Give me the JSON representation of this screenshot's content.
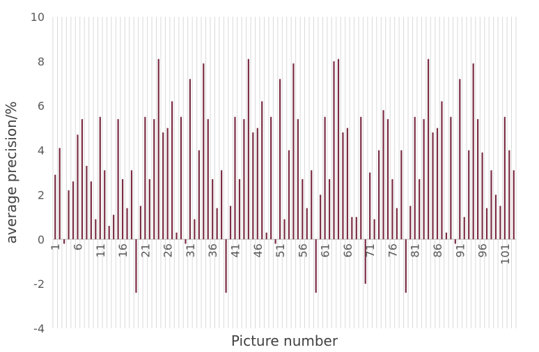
{
  "chart_data": {
    "type": "bar",
    "title": "",
    "xlabel": "Picture number",
    "ylabel": "average precision/%",
    "ylim": [
      -4,
      10
    ],
    "yticks": [
      -4,
      -2,
      0,
      2,
      4,
      6,
      8,
      10
    ],
    "ytick_labels": [
      "-4",
      "-2",
      "0",
      "2",
      "4",
      "6",
      "8",
      "10"
    ],
    "grid": "vertical",
    "categories": [
      "1",
      "2",
      "3",
      "4",
      "5",
      "6",
      "7",
      "8",
      "9",
      "10",
      "11",
      "12",
      "13",
      "14",
      "15",
      "16",
      "17",
      "18",
      "19",
      "20",
      "21",
      "22",
      "23",
      "24",
      "25",
      "26",
      "27",
      "28",
      "29",
      "30",
      "31",
      "32",
      "33",
      "34",
      "35",
      "36",
      "37",
      "38",
      "39",
      "40",
      "41",
      "42",
      "43",
      "44",
      "45",
      "46",
      "47",
      "48",
      "49",
      "50",
      "51",
      "52",
      "53",
      "54",
      "55",
      "56",
      "57",
      "58",
      "59",
      "60",
      "61",
      "62",
      "63",
      "64",
      "65",
      "66",
      "67",
      "68",
      "69",
      "70",
      "71",
      "72",
      "73",
      "74",
      "75",
      "76",
      "77",
      "78",
      "79",
      "80",
      "81",
      "82",
      "83",
      "84",
      "85",
      "86",
      "87",
      "88",
      "89",
      "90",
      "91",
      "92",
      "93",
      "94",
      "95",
      "96",
      "97",
      "98",
      "99",
      "100",
      "101",
      "102",
      "103"
    ],
    "xtick_labels": [
      "1",
      "6",
      "11",
      "16",
      "21",
      "26",
      "31",
      "36",
      "41",
      "46",
      "51",
      "56",
      "61",
      "66",
      "71",
      "76",
      "81",
      "86",
      "91",
      "96",
      "101"
    ],
    "series": [
      {
        "name": "average precision",
        "color": "#7B2C43",
        "values": [
          2.9,
          4.1,
          -0.2,
          2.2,
          2.6,
          4.7,
          5.4,
          3.3,
          2.6,
          0.9,
          5.5,
          3.1,
          0.6,
          1.1,
          5.4,
          2.7,
          1.4,
          3.1,
          -2.4,
          1.5,
          5.5,
          2.7,
          5.4,
          8.1,
          4.8,
          5.0,
          6.2,
          0.3,
          5.5,
          -0.2,
          7.2,
          0.9,
          4.0,
          7.9,
          5.4,
          2.7,
          1.4,
          3.1,
          -2.4,
          1.5,
          5.5,
          2.7,
          5.4,
          8.1,
          4.8,
          5.0,
          6.2,
          0.3,
          5.5,
          -0.2,
          7.2,
          0.9,
          4.0,
          7.9,
          5.4,
          2.7,
          1.4,
          3.1,
          -2.4,
          2.0,
          5.5,
          2.7,
          8.0,
          8.1,
          4.8,
          5.0,
          1.0,
          1.0,
          5.5,
          -2.0,
          3.0,
          0.9,
          4.0,
          5.8,
          5.4,
          2.7,
          1.4,
          4.0,
          -2.4,
          1.5,
          5.5,
          2.7,
          5.4,
          8.1,
          4.8,
          5.0,
          6.2,
          0.3,
          5.5,
          -0.2,
          7.2,
          1.0,
          4.0,
          7.9,
          5.4,
          3.9,
          1.4,
          3.1,
          2.0,
          1.5,
          5.5,
          4.0,
          3.1
        ]
      }
    ]
  }
}
